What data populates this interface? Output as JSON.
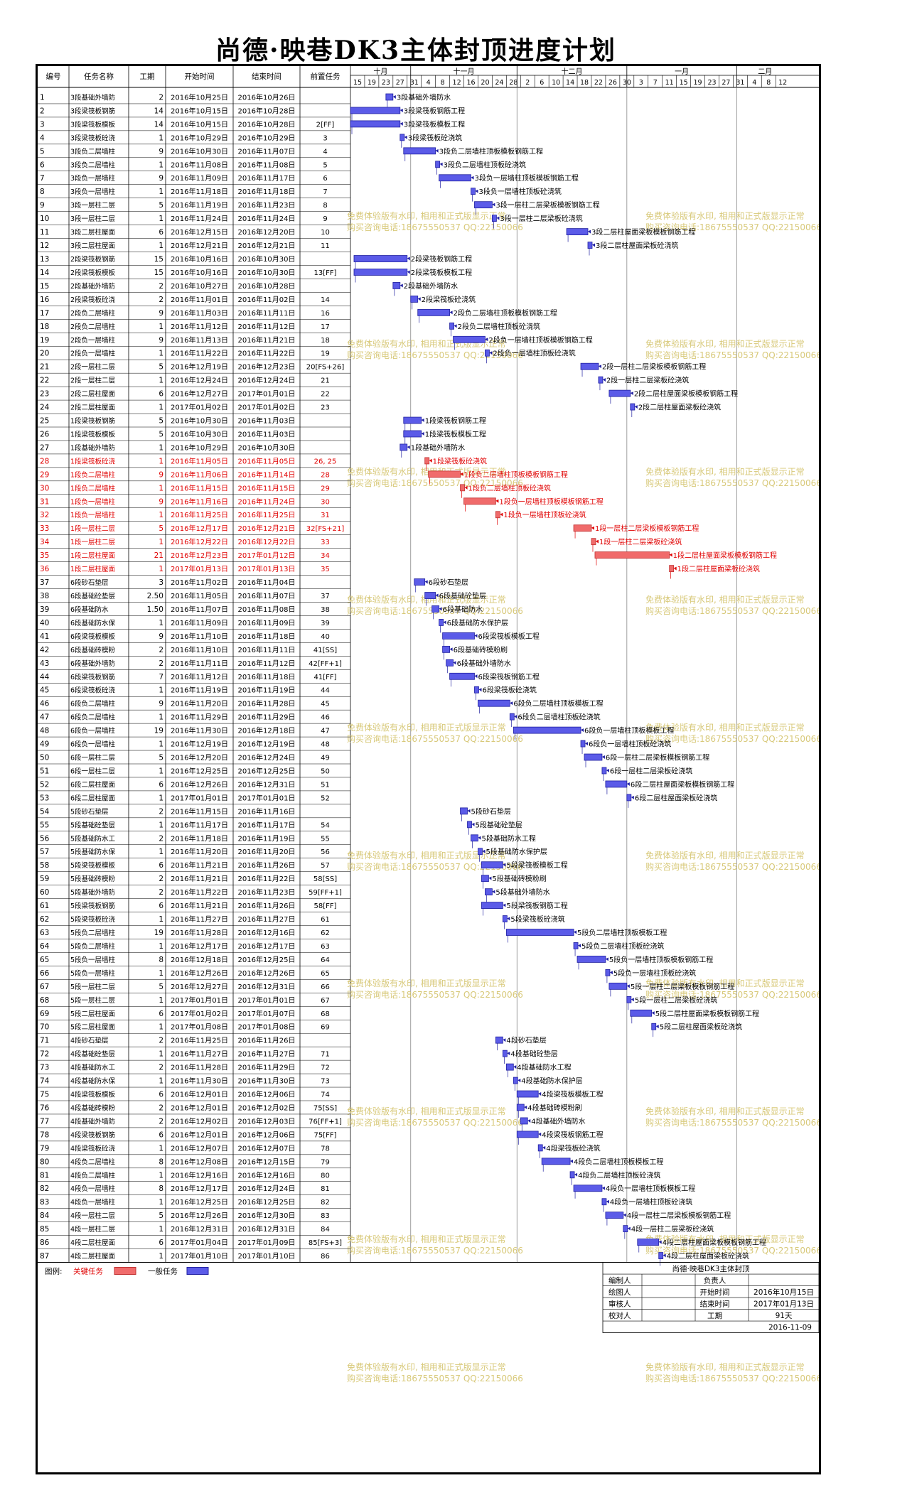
{
  "title": "尚德·映巷DK3主体封顶进度计划",
  "columns": [
    "编号",
    "任务名称",
    "工期",
    "开始时间",
    "结束时间",
    "前置任务"
  ],
  "months": [
    "十月",
    "十一月",
    "十二月",
    "一月",
    "二月"
  ],
  "day_ticks": [
    "15",
    "19",
    "23",
    "27",
    "31",
    "4",
    "8",
    "12",
    "16",
    "20",
    "24",
    "28",
    "2",
    "6",
    "10",
    "14",
    "18",
    "22",
    "26",
    "30",
    "3",
    "7",
    "11",
    "15",
    "19",
    "23",
    "27",
    "31",
    "4",
    "8",
    "12"
  ],
  "legend": {
    "label": "图例:",
    "critical": "关键任务",
    "normal": "一般任务"
  },
  "footer": {
    "project": "尚德·映巷DK3主体封顶",
    "editor": "编制人",
    "drafter": "绘图人",
    "reviewer": "审核人",
    "checker": "校对人",
    "owner": "负责人",
    "start_label": "开始时间",
    "end_label": "结束时间",
    "duration_label": "工期",
    "start": "2016年10月15日",
    "end": "2017年01月13日",
    "duration": "91天",
    "date": "2016-11-09"
  },
  "watermark": {
    "line1": "免费体验版有水印, 相用和正式版显示正常",
    "line2": "购买咨询电话:18675550537 QQ:22150066"
  },
  "colors": {
    "critical": "#f06b6b",
    "normal": "#5b5be8",
    "critical_text": "#e00000"
  },
  "chart_data": {
    "type": "gantt",
    "x_range": [
      "2016-10-15",
      "2017-02-14"
    ],
    "tasks": [
      [
        "1",
        "3段基础外墙防水",
        "2",
        "2016年10月25日",
        "2016年10月26日",
        "",
        0
      ],
      [
        "2",
        "3段梁筏板钢筋工程",
        "14",
        "2016年10月15日",
        "2016年10月28日",
        "",
        0
      ],
      [
        "3",
        "3段梁筏板模板工程",
        "14",
        "2016年10月15日",
        "2016年10月28日",
        "2[FF]",
        0
      ],
      [
        "4",
        "3段梁筏板砼浇筑",
        "1",
        "2016年10月29日",
        "2016年10月29日",
        "3",
        0
      ],
      [
        "5",
        "3段负二层墙柱顶板模板钢筋工程",
        "9",
        "2016年10月30日",
        "2016年11月07日",
        "4",
        0
      ],
      [
        "6",
        "3段负二层墙柱顶板砼浇筑",
        "1",
        "2016年11月08日",
        "2016年11月08日",
        "5",
        0
      ],
      [
        "7",
        "3段负一层墙柱顶板模板钢筋工程",
        "9",
        "2016年11月09日",
        "2016年11月17日",
        "6",
        0
      ],
      [
        "8",
        "3段负一层墙柱顶板砼浇筑",
        "1",
        "2016年11月18日",
        "2016年11月18日",
        "7",
        0
      ],
      [
        "9",
        "3段一层柱二层梁板模板钢筋工程",
        "5",
        "2016年11月19日",
        "2016年11月23日",
        "8",
        0
      ],
      [
        "10",
        "3段一层柱二层梁板砼浇筑",
        "1",
        "2016年11月24日",
        "2016年11月24日",
        "9",
        0
      ],
      [
        "11",
        "3段二层柱屋面梁板模板钢筋工程",
        "6",
        "2016年12月15日",
        "2016年12月20日",
        "10",
        0
      ],
      [
        "12",
        "3段二层柱屋面梁板砼浇筑",
        "1",
        "2016年12月21日",
        "2016年12月21日",
        "11",
        0
      ],
      [
        "13",
        "2段梁筏板钢筋工程",
        "15",
        "2016年10月16日",
        "2016年10月30日",
        "",
        0
      ],
      [
        "14",
        "2段梁筏板模板工程",
        "15",
        "2016年10月16日",
        "2016年10月30日",
        "13[FF]",
        0
      ],
      [
        "15",
        "2段基础外墙防水",
        "2",
        "2016年10月27日",
        "2016年10月28日",
        "",
        0
      ],
      [
        "16",
        "2段梁筏板砼浇筑",
        "2",
        "2016年11月01日",
        "2016年11月02日",
        "14",
        0
      ],
      [
        "17",
        "2段负二层墙柱顶板模板钢筋工程",
        "9",
        "2016年11月03日",
        "2016年11月11日",
        "16",
        0
      ],
      [
        "18",
        "2段负二层墙柱顶板砼浇筑",
        "1",
        "2016年11月12日",
        "2016年11月12日",
        "17",
        0
      ],
      [
        "19",
        "2段负一层墙柱顶板模板钢筋工程",
        "9",
        "2016年11月13日",
        "2016年11月21日",
        "18",
        0
      ],
      [
        "20",
        "2段负一层墙柱顶板砼浇筑",
        "1",
        "2016年11月22日",
        "2016年11月22日",
        "19",
        0
      ],
      [
        "21",
        "2段一层柱二层梁板模板钢筋工程",
        "5",
        "2016年12月19日",
        "2016年12月23日",
        "20[FS+26]",
        0
      ],
      [
        "22",
        "2段一层柱二层梁板砼浇筑",
        "1",
        "2016年12月24日",
        "2016年12月24日",
        "21",
        0
      ],
      [
        "23",
        "2段二层柱屋面梁板模板钢筋工程",
        "6",
        "2016年12月27日",
        "2017年01月01日",
        "22",
        0
      ],
      [
        "24",
        "2段二层柱屋面梁板砼浇筑",
        "1",
        "2017年01月02日",
        "2017年01月02日",
        "23",
        0
      ],
      [
        "25",
        "1段梁筏板钢筋工程",
        "5",
        "2016年10月30日",
        "2016年11月03日",
        "",
        0
      ],
      [
        "26",
        "1段梁筏板模板工程",
        "5",
        "2016年10月30日",
        "2016年11月03日",
        "",
        0
      ],
      [
        "27",
        "1段基础外墙防水",
        "1",
        "2016年10月29日",
        "2016年10月30日",
        "",
        0
      ],
      [
        "28",
        "1段梁筏板砼浇筑",
        "1",
        "2016年11月05日",
        "2016年11月05日",
        "26, 25",
        1
      ],
      [
        "29",
        "1段负二层墙柱顶板模板钢筋工程",
        "9",
        "2016年11月06日",
        "2016年11月14日",
        "28",
        1
      ],
      [
        "30",
        "1段负二层墙柱顶板砼浇筑",
        "1",
        "2016年11月15日",
        "2016年11月15日",
        "29",
        1
      ],
      [
        "31",
        "1段负一层墙柱顶板模板钢筋工程",
        "9",
        "2016年11月16日",
        "2016年11月24日",
        "30",
        1
      ],
      [
        "32",
        "1段负一层墙柱顶板砼浇筑",
        "1",
        "2016年11月25日",
        "2016年11月25日",
        "31",
        1
      ],
      [
        "33",
        "1段一层柱二层梁板模板钢筋工程",
        "5",
        "2016年12月17日",
        "2016年12月21日",
        "32[FS+21]",
        1
      ],
      [
        "34",
        "1段一层柱二层梁板砼浇筑",
        "1",
        "2016年12月22日",
        "2016年12月22日",
        "33",
        1
      ],
      [
        "35",
        "1段二层柱屋面梁板模板钢筋工程",
        "21",
        "2016年12月23日",
        "2017年01月12日",
        "34",
        1
      ],
      [
        "36",
        "1段二层柱屋面梁板砼浇筑",
        "1",
        "2017年01月13日",
        "2017年01月13日",
        "35",
        1
      ],
      [
        "37",
        "6段砂石垫层",
        "3",
        "2016年11月02日",
        "2016年11月04日",
        "",
        0
      ],
      [
        "38",
        "6段基础砼垫层",
        "2.50",
        "2016年11月05日",
        "2016年11月07日",
        "37",
        0
      ],
      [
        "39",
        "6段基础防水",
        "1.50",
        "2016年11月07日",
        "2016年11月08日",
        "38",
        0
      ],
      [
        "40",
        "6段基础防水保护层",
        "1",
        "2016年11月09日",
        "2016年11月09日",
        "39",
        0
      ],
      [
        "41",
        "6段梁筏板模板工程",
        "9",
        "2016年11月10日",
        "2016年11月18日",
        "40",
        0
      ],
      [
        "42",
        "6段基础砖模粉刷",
        "2",
        "2016年11月10日",
        "2016年11月11日",
        "41[SS]",
        0
      ],
      [
        "43",
        "6段基础外墙防水",
        "2",
        "2016年11月11日",
        "2016年11月12日",
        "42[FF+1]",
        0
      ],
      [
        "44",
        "6段梁筏板钢筋工程",
        "7",
        "2016年11月12日",
        "2016年11月18日",
        "41[FF]",
        0
      ],
      [
        "45",
        "6段梁筏板砼浇筑",
        "1",
        "2016年11月19日",
        "2016年11月19日",
        "44",
        0
      ],
      [
        "46",
        "6段负二层墙柱顶板模板工程",
        "9",
        "2016年11月20日",
        "2016年11月28日",
        "45",
        0
      ],
      [
        "47",
        "6段负二层墙柱顶板砼浇筑",
        "1",
        "2016年11月29日",
        "2016年11月29日",
        "46",
        0
      ],
      [
        "48",
        "6段负一层墙柱顶板模板工程",
        "19",
        "2016年11月30日",
        "2016年12月18日",
        "47",
        0
      ],
      [
        "49",
        "6段负一层墙柱顶板砼浇筑",
        "1",
        "2016年12月19日",
        "2016年12月19日",
        "48",
        0
      ],
      [
        "50",
        "6段一层柱二层梁板模板钢筋工程",
        "5",
        "2016年12月20日",
        "2016年12月24日",
        "49",
        0
      ],
      [
        "51",
        "6段一层柱二层梁板砼浇筑",
        "1",
        "2016年12月25日",
        "2016年12月25日",
        "50",
        0
      ],
      [
        "52",
        "6段二层柱屋面梁板模板钢筋工程",
        "6",
        "2016年12月26日",
        "2016年12月31日",
        "51",
        0
      ],
      [
        "53",
        "6段二层柱屋面梁板砼浇筑",
        "1",
        "2017年01月01日",
        "2017年01月01日",
        "52",
        0
      ],
      [
        "54",
        "5段砂石垫层",
        "2",
        "2016年11月15日",
        "2016年11月16日",
        "",
        0
      ],
      [
        "55",
        "5段基础砼垫层",
        "1",
        "2016年11月17日",
        "2016年11月17日",
        "54",
        0
      ],
      [
        "56",
        "5段基础防水工程",
        "2",
        "2016年11月18日",
        "2016年11月19日",
        "55",
        0
      ],
      [
        "57",
        "5段基础防水保护层",
        "1",
        "2016年11月20日",
        "2016年11月20日",
        "56",
        0
      ],
      [
        "58",
        "5段梁筏板模板工程",
        "6",
        "2016年11月21日",
        "2016年11月26日",
        "57",
        0
      ],
      [
        "59",
        "5段基础砖模粉刷",
        "2",
        "2016年11月21日",
        "2016年11月22日",
        "58[SS]",
        0
      ],
      [
        "60",
        "5段基础外墙防水",
        "2",
        "2016年11月22日",
        "2016年11月23日",
        "59[FF+1]",
        0
      ],
      [
        "61",
        "5段梁筏板钢筋工程",
        "6",
        "2016年11月21日",
        "2016年11月26日",
        "58[FF]",
        0
      ],
      [
        "62",
        "5段梁筏板砼浇筑",
        "1",
        "2016年11月27日",
        "2016年11月27日",
        "61",
        0
      ],
      [
        "63",
        "5段负二层墙柱顶板模板工程",
        "19",
        "2016年11月28日",
        "2016年12月16日",
        "62",
        0
      ],
      [
        "64",
        "5段负二层墙柱顶板砼浇筑",
        "1",
        "2016年12月17日",
        "2016年12月17日",
        "63",
        0
      ],
      [
        "65",
        "5段负一层墙柱顶板模板钢筋工程",
        "8",
        "2016年12月18日",
        "2016年12月25日",
        "64",
        0
      ],
      [
        "66",
        "5段负一层墙柱顶板砼浇筑",
        "1",
        "2016年12月26日",
        "2016年12月26日",
        "65",
        0
      ],
      [
        "67",
        "5段一层柱二层梁板模板钢筋工程",
        "5",
        "2016年12月27日",
        "2016年12月31日",
        "66",
        0
      ],
      [
        "68",
        "5段一层柱二层梁板砼浇筑",
        "1",
        "2017年01月01日",
        "2017年01月01日",
        "67",
        0
      ],
      [
        "69",
        "5段二层柱屋面梁板模板钢筋工程",
        "6",
        "2017年01月02日",
        "2017年01月07日",
        "68",
        0
      ],
      [
        "70",
        "5段二层柱屋面梁板砼浇筑",
        "1",
        "2017年01月08日",
        "2017年01月08日",
        "69",
        0
      ],
      [
        "71",
        "4段砂石垫层",
        "2",
        "2016年11月25日",
        "2016年11月26日",
        "",
        0
      ],
      [
        "72",
        "4段基础砼垫层",
        "1",
        "2016年11月27日",
        "2016年11月27日",
        "71",
        0
      ],
      [
        "73",
        "4段基础防水工程",
        "2",
        "2016年11月28日",
        "2016年11月29日",
        "72",
        0
      ],
      [
        "74",
        "4段基础防水保护层",
        "1",
        "2016年11月30日",
        "2016年11月30日",
        "73",
        0
      ],
      [
        "75",
        "4段梁筏板模板工程",
        "6",
        "2016年12月01日",
        "2016年12月06日",
        "74",
        0
      ],
      [
        "76",
        "4段基础砖模粉刷",
        "2",
        "2016年12月01日",
        "2016年12月02日",
        "75[SS]",
        0
      ],
      [
        "77",
        "4段基础外墙防水",
        "2",
        "2016年12月02日",
        "2016年12月03日",
        "76[FF+1]",
        0
      ],
      [
        "78",
        "4段梁筏板钢筋工程",
        "6",
        "2016年12月01日",
        "2016年12月06日",
        "75[FF]",
        0
      ],
      [
        "79",
        "4段梁筏板砼浇筑",
        "1",
        "2016年12月07日",
        "2016年12月07日",
        "78",
        0
      ],
      [
        "80",
        "4段负二层墙柱顶板模板工程",
        "8",
        "2016年12月08日",
        "2016年12月15日",
        "79",
        0
      ],
      [
        "81",
        "4段负二层墙柱顶板砼浇筑",
        "1",
        "2016年12月16日",
        "2016年12月16日",
        "80",
        0
      ],
      [
        "82",
        "4段负一层墙柱顶板模板工程",
        "8",
        "2016年12月17日",
        "2016年12月24日",
        "81",
        0
      ],
      [
        "83",
        "4段负一层墙柱顶板砼浇筑",
        "1",
        "2016年12月25日",
        "2016年12月25日",
        "82",
        0
      ],
      [
        "84",
        "4段一层柱二层梁板模板钢筋工程",
        "5",
        "2016年12月26日",
        "2016年12月30日",
        "83",
        0
      ],
      [
        "85",
        "4段一层柱二层梁板砼浇筑",
        "1",
        "2016年12月31日",
        "2016年12月31日",
        "84",
        0
      ],
      [
        "86",
        "4段二层柱屋面梁板模板钢筋工程",
        "6",
        "2017年01月04日",
        "2017年01月09日",
        "85[FS+3]",
        0
      ],
      [
        "87",
        "4段二层柱屋面梁板砼浇筑",
        "1",
        "2017年01月10日",
        "2017年01月10日",
        "86",
        0
      ]
    ]
  }
}
